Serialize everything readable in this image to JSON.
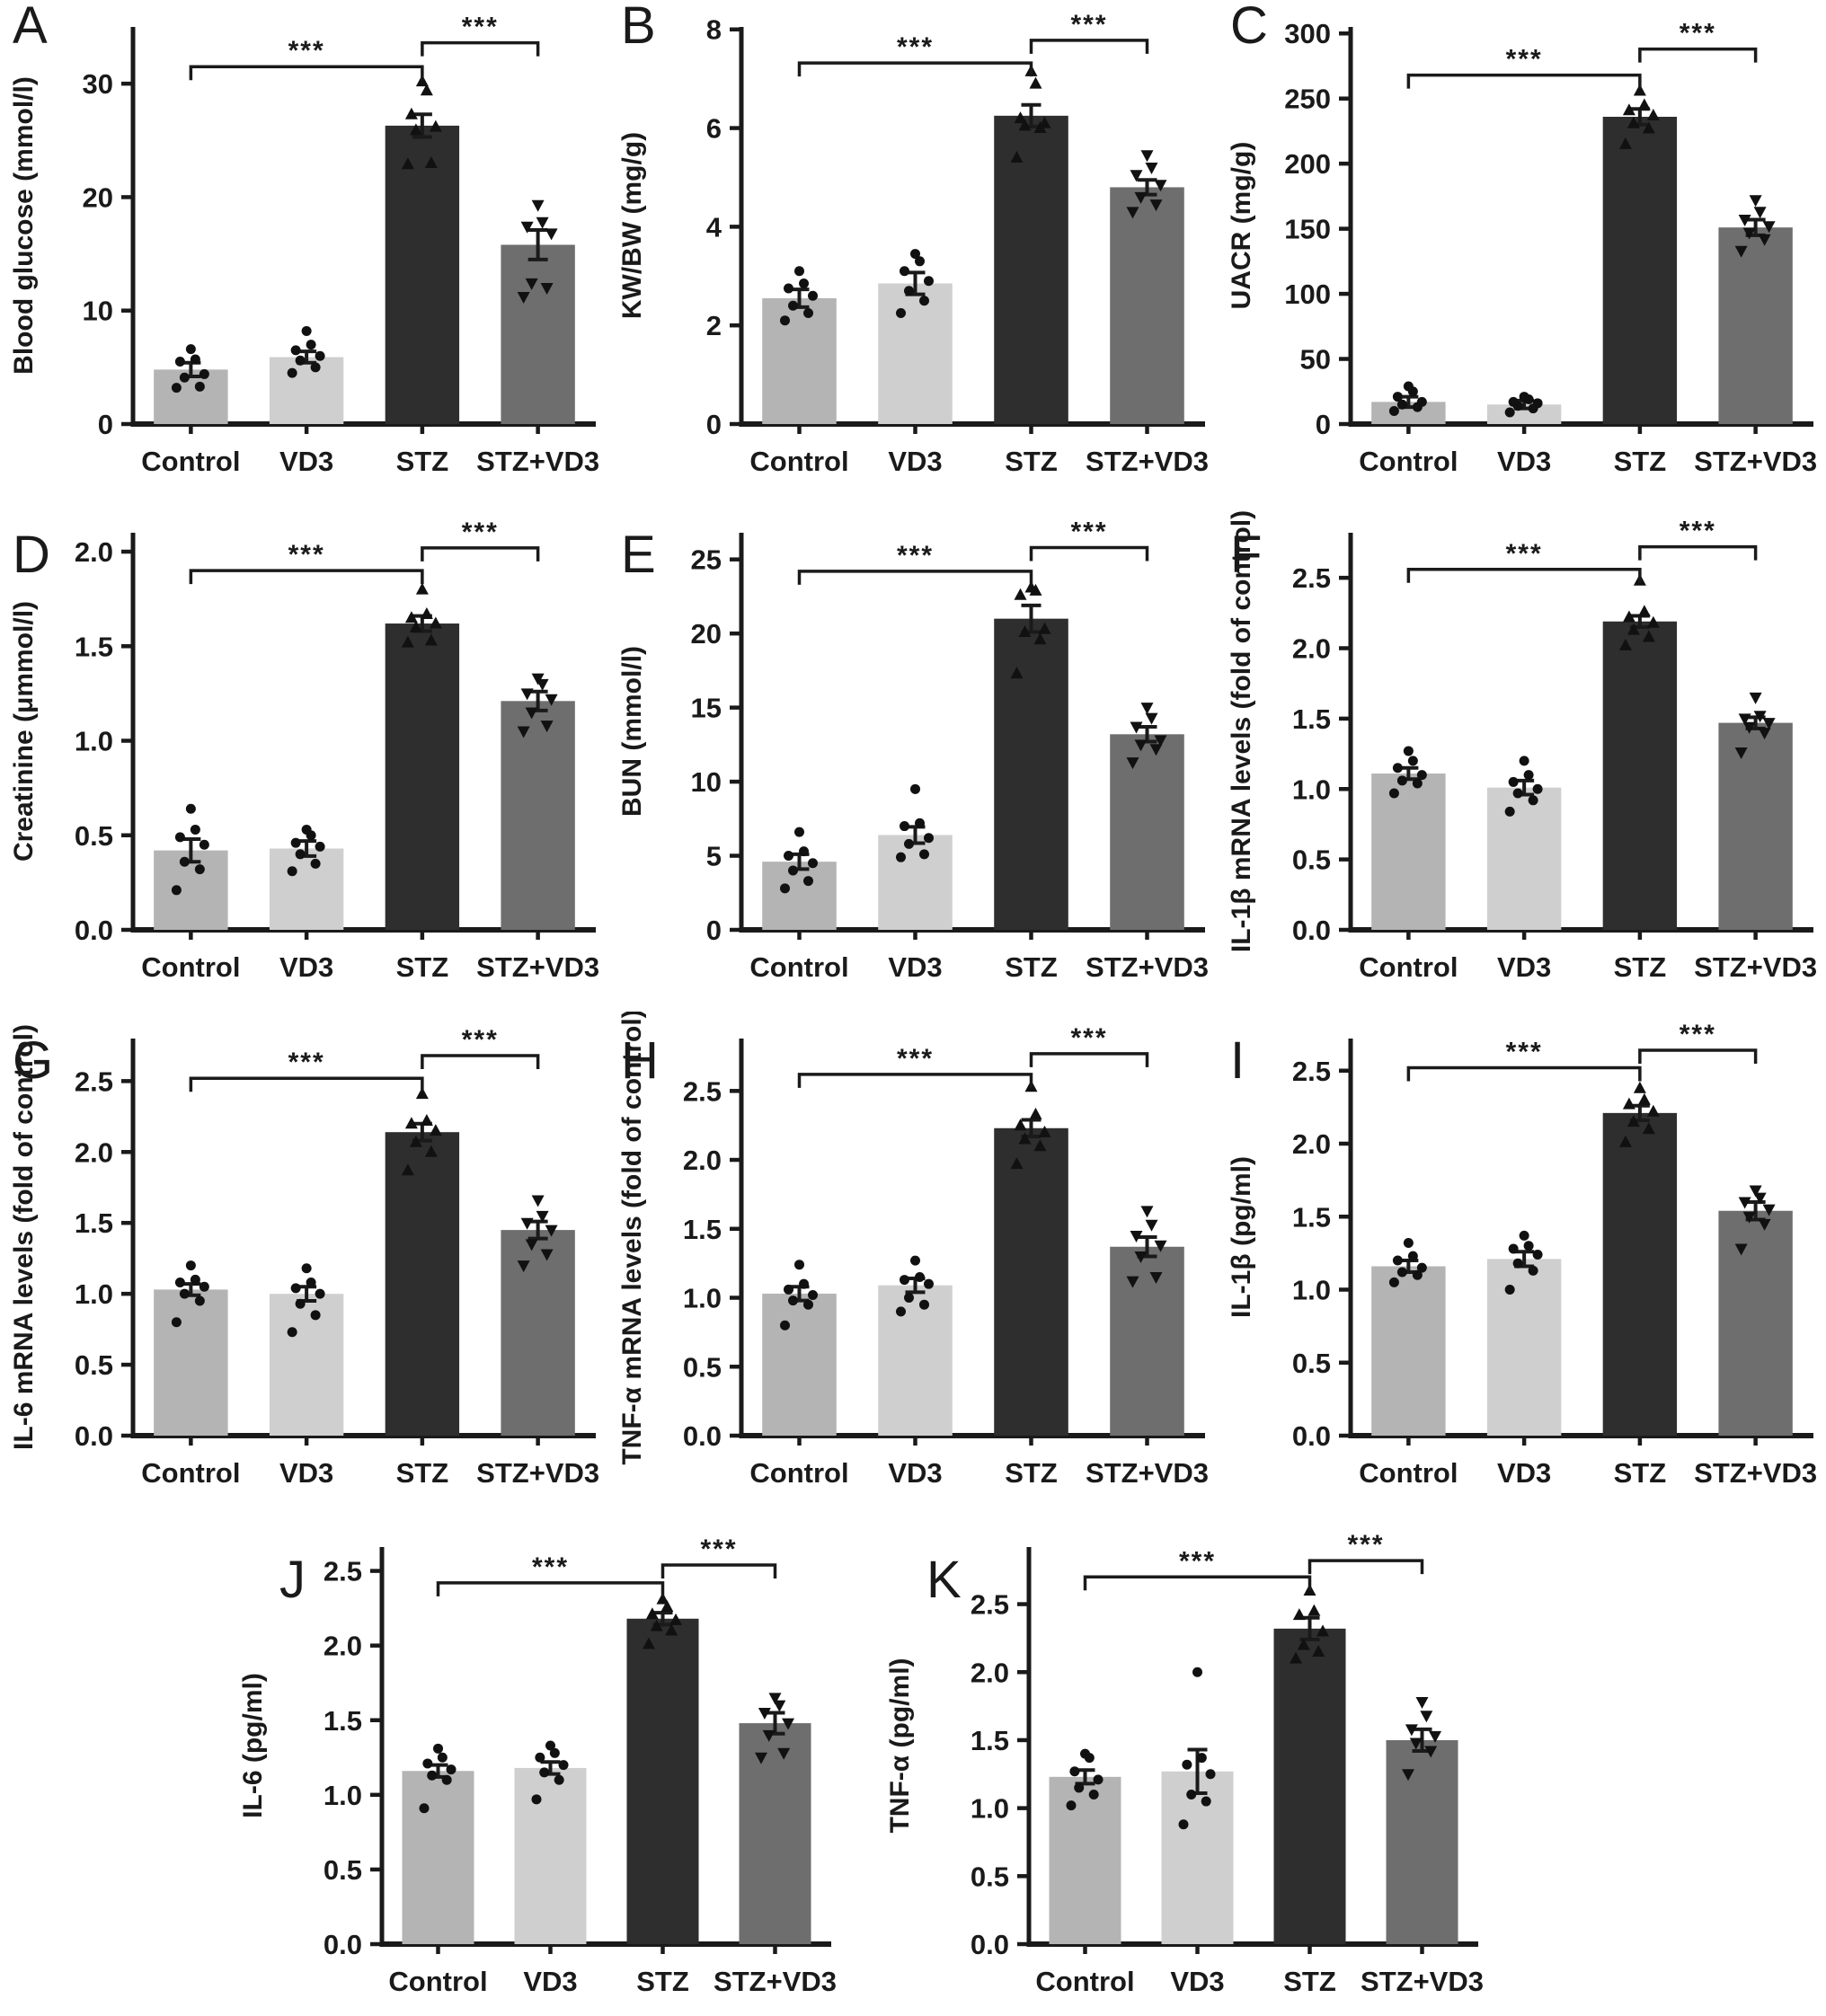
{
  "colors": {
    "bar_colors": [
      "#b4b4b4",
      "#cfcfcf",
      "#2e2e2e",
      "#6e6e6e"
    ],
    "axis": "#1a1a1a",
    "dot": "#111111",
    "significance": "#1a1a1a",
    "background": "#ffffff"
  },
  "markers": [
    "circle",
    "circle",
    "triangle-up",
    "triangle-down"
  ],
  "categories": [
    "Control",
    "VD3",
    "STZ",
    "STZ+VD3"
  ],
  "chart_data": [
    {
      "panel": "A",
      "type": "bar",
      "ylabel": "Blood glucose (mmol/l)",
      "categories": [
        "Control",
        "VD3",
        "STZ",
        "STZ+VD3"
      ],
      "values": [
        4.8,
        5.9,
        26.3,
        15.8
      ],
      "errors": [
        0.6,
        0.5,
        1.0,
        1.3
      ],
      "points": [
        [
          3.2,
          3.3,
          4.1,
          4.4,
          5.5,
          5.7,
          6.6
        ],
        [
          4.5,
          5.0,
          5.6,
          6.0,
          6.5,
          7.0,
          8.2
        ],
        [
          22.9,
          23.0,
          25.9,
          26.2,
          27.3,
          29.4,
          30.2
        ],
        [
          11.2,
          12.0,
          12.4,
          16.8,
          17.4,
          17.8,
          19.3
        ]
      ],
      "yticks": [
        0,
        10,
        20,
        30
      ],
      "ytick_labels": [
        "0",
        "10",
        "20",
        "30"
      ],
      "ylim": [
        0,
        35
      ],
      "significance": [
        {
          "from": 0,
          "to": 2,
          "label": "***",
          "y": 31.5
        },
        {
          "from": 2,
          "to": 3,
          "label": "***",
          "y": 33.6
        }
      ]
    },
    {
      "panel": "B",
      "type": "bar",
      "ylabel": "KW/BW (mg/g)",
      "categories": [
        "Control",
        "VD3",
        "STZ",
        "STZ+VD3"
      ],
      "values": [
        2.55,
        2.85,
        6.25,
        4.8
      ],
      "errors": [
        0.18,
        0.22,
        0.22,
        0.15
      ],
      "points": [
        [
          2.1,
          2.25,
          2.4,
          2.6,
          2.75,
          2.85,
          3.1
        ],
        [
          2.25,
          2.5,
          2.7,
          2.9,
          3.1,
          3.3,
          3.45
        ],
        [
          5.4,
          6.0,
          6.05,
          6.1,
          6.2,
          6.9,
          7.15
        ],
        [
          4.3,
          4.45,
          4.6,
          4.85,
          5.05,
          5.2,
          5.45
        ]
      ],
      "yticks": [
        0,
        2,
        4,
        6,
        8
      ],
      "ytick_labels": [
        "0",
        "2",
        "4",
        "6",
        "8"
      ],
      "ylim": [
        0,
        8.05
      ],
      "significance": [
        {
          "from": 0,
          "to": 2,
          "label": "***",
          "y": 7.32
        },
        {
          "from": 2,
          "to": 3,
          "label": "***",
          "y": 7.78
        }
      ]
    },
    {
      "panel": "C",
      "type": "bar",
      "ylabel": "UACR (mg/g)",
      "categories": [
        "Control",
        "VD3",
        "STZ",
        "STZ+VD3"
      ],
      "values": [
        17,
        15,
        236,
        151
      ],
      "errors": [
        4,
        3,
        6,
        6
      ],
      "points": [
        [
          10,
          13,
          15,
          17,
          21,
          25,
          29
        ],
        [
          9,
          12,
          14,
          16,
          17,
          19,
          21
        ],
        [
          215,
          227,
          231,
          237,
          241,
          245,
          256
        ],
        [
          133,
          142,
          147,
          152,
          157,
          163,
          172
        ]
      ],
      "yticks": [
        0,
        50,
        100,
        150,
        200,
        250,
        300
      ],
      "ytick_labels": [
        "0",
        "50",
        "100",
        "150",
        "200",
        "250",
        "300"
      ],
      "ylim": [
        0,
        305
      ],
      "significance": [
        {
          "from": 0,
          "to": 2,
          "label": "***",
          "y": 268
        },
        {
          "from": 2,
          "to": 3,
          "label": "***",
          "y": 288
        }
      ]
    },
    {
      "panel": "D",
      "type": "bar",
      "ylabel": "Creatinine (μmmol/l)",
      "categories": [
        "Control",
        "VD3",
        "STZ",
        "STZ+VD3"
      ],
      "values": [
        0.42,
        0.43,
        1.62,
        1.21
      ],
      "errors": [
        0.06,
        0.04,
        0.04,
        0.05
      ],
      "points": [
        [
          0.21,
          0.32,
          0.36,
          0.45,
          0.49,
          0.53,
          0.64
        ],
        [
          0.31,
          0.35,
          0.4,
          0.44,
          0.46,
          0.5,
          0.53
        ],
        [
          1.52,
          1.53,
          1.6,
          1.62,
          1.65,
          1.67,
          1.8
        ],
        [
          1.05,
          1.08,
          1.15,
          1.22,
          1.25,
          1.3,
          1.33
        ]
      ],
      "yticks": [
        0,
        0.5,
        1.0,
        1.5,
        2.0
      ],
      "ytick_labels": [
        "0.0",
        "0.5",
        "1.0",
        "1.5",
        "2.0"
      ],
      "ylim": [
        0,
        2.1
      ],
      "significance": [
        {
          "from": 0,
          "to": 2,
          "label": "***",
          "y": 1.9
        },
        {
          "from": 2,
          "to": 3,
          "label": "***",
          "y": 2.02
        }
      ]
    },
    {
      "panel": "E",
      "type": "bar",
      "ylabel": "BUN (mmol/l)",
      "categories": [
        "Control",
        "VD3",
        "STZ",
        "STZ+VD3"
      ],
      "values": [
        4.6,
        6.4,
        21.0,
        13.2
      ],
      "errors": [
        0.5,
        0.55,
        0.9,
        0.5
      ],
      "points": [
        [
          2.8,
          3.3,
          4.0,
          4.5,
          5.0,
          5.3,
          6.6
        ],
        [
          4.9,
          5.1,
          5.8,
          6.2,
          7.0,
          7.2,
          9.5
        ],
        [
          17.3,
          19.6,
          20.1,
          20.3,
          22.6,
          22.9,
          23.1
        ],
        [
          11.3,
          12.2,
          12.5,
          12.8,
          13.7,
          14.3,
          15.0
        ]
      ],
      "yticks": [
        0,
        5,
        10,
        15,
        20,
        25
      ],
      "ytick_labels": [
        "0",
        "5",
        "10",
        "15",
        "20",
        "25"
      ],
      "ylim": [
        0,
        26.8
      ],
      "significance": [
        {
          "from": 0,
          "to": 2,
          "label": "***",
          "y": 24.2
        },
        {
          "from": 2,
          "to": 3,
          "label": "***",
          "y": 25.8
        }
      ]
    },
    {
      "panel": "F",
      "type": "bar",
      "ylabel": "IL-1β mRNA levels (fold of control)",
      "categories": [
        "Control",
        "VD3",
        "STZ",
        "STZ+VD3"
      ],
      "values": [
        1.11,
        1.01,
        2.19,
        1.47
      ],
      "errors": [
        0.04,
        0.05,
        0.04,
        0.04
      ],
      "points": [
        [
          0.97,
          1.04,
          1.06,
          1.1,
          1.15,
          1.2,
          1.27
        ],
        [
          0.84,
          0.92,
          0.97,
          1.0,
          1.05,
          1.1,
          1.2
        ],
        [
          2.02,
          2.08,
          2.13,
          2.18,
          2.22,
          2.26,
          2.48
        ],
        [
          1.26,
          1.4,
          1.44,
          1.47,
          1.5,
          1.52,
          1.65
        ]
      ],
      "yticks": [
        0,
        0.5,
        1.0,
        1.5,
        2.0,
        2.5
      ],
      "ytick_labels": [
        "0.0",
        "0.5",
        "1.0",
        "1.5",
        "2.0",
        "2.5"
      ],
      "ylim": [
        0,
        2.82
      ],
      "significance": [
        {
          "from": 0,
          "to": 2,
          "label": "***",
          "y": 2.56
        },
        {
          "from": 2,
          "to": 3,
          "label": "***",
          "y": 2.72
        }
      ]
    },
    {
      "panel": "G",
      "type": "bar",
      "ylabel": "IL-6 mRNA levels (fold of control)",
      "categories": [
        "Control",
        "VD3",
        "STZ",
        "STZ+VD3"
      ],
      "values": [
        1.03,
        1.0,
        2.14,
        1.45
      ],
      "errors": [
        0.04,
        0.05,
        0.06,
        0.06
      ],
      "points": [
        [
          0.8,
          0.95,
          1.0,
          1.05,
          1.08,
          1.1,
          1.2
        ],
        [
          0.73,
          0.85,
          0.93,
          1.0,
          1.04,
          1.08,
          1.18
        ],
        [
          1.87,
          2.0,
          2.07,
          2.15,
          2.2,
          2.22,
          2.41
        ],
        [
          1.2,
          1.28,
          1.35,
          1.45,
          1.5,
          1.55,
          1.66
        ]
      ],
      "yticks": [
        0,
        0.5,
        1.0,
        1.5,
        2.0,
        2.5
      ],
      "ytick_labels": [
        "0.0",
        "0.5",
        "1.0",
        "1.5",
        "2.0",
        "2.5"
      ],
      "ylim": [
        0,
        2.8
      ],
      "significance": [
        {
          "from": 0,
          "to": 2,
          "label": "***",
          "y": 2.52
        },
        {
          "from": 2,
          "to": 3,
          "label": "***",
          "y": 2.68
        }
      ]
    },
    {
      "panel": "H",
      "type": "bar",
      "ylabel": "TNF-α mRNA levels (fold of control)",
      "categories": [
        "Control",
        "VD3",
        "STZ",
        "STZ+VD3"
      ],
      "values": [
        1.03,
        1.09,
        2.23,
        1.37
      ],
      "errors": [
        0.05,
        0.05,
        0.06,
        0.07
      ],
      "points": [
        [
          0.8,
          0.95,
          0.98,
          1.02,
          1.06,
          1.1,
          1.24
        ],
        [
          0.9,
          0.95,
          1.0,
          1.1,
          1.13,
          1.15,
          1.27
        ],
        [
          1.97,
          2.1,
          2.15,
          2.2,
          2.25,
          2.33,
          2.53
        ],
        [
          1.12,
          1.15,
          1.3,
          1.38,
          1.45,
          1.53,
          1.63
        ]
      ],
      "yticks": [
        0,
        0.5,
        1.0,
        1.5,
        2.0,
        2.5
      ],
      "ytick_labels": [
        "0.0",
        "0.5",
        "1.0",
        "1.5",
        "2.0",
        "2.5"
      ],
      "ylim": [
        0,
        2.88
      ],
      "significance": [
        {
          "from": 0,
          "to": 2,
          "label": "***",
          "y": 2.62
        },
        {
          "from": 2,
          "to": 3,
          "label": "***",
          "y": 2.77
        }
      ]
    },
    {
      "panel": "I",
      "type": "bar",
      "ylabel": "IL-1β (pg/ml)",
      "categories": [
        "Control",
        "VD3",
        "STZ",
        "STZ+VD3"
      ],
      "values": [
        1.16,
        1.21,
        2.21,
        1.54
      ],
      "errors": [
        0.04,
        0.05,
        0.05,
        0.06
      ],
      "points": [
        [
          1.05,
          1.1,
          1.12,
          1.15,
          1.2,
          1.23,
          1.32
        ],
        [
          1.0,
          1.13,
          1.18,
          1.24,
          1.28,
          1.3,
          1.37
        ],
        [
          2.01,
          2.1,
          2.15,
          2.22,
          2.27,
          2.3,
          2.38
        ],
        [
          1.28,
          1.45,
          1.5,
          1.55,
          1.6,
          1.63,
          1.68
        ]
      ],
      "yticks": [
        0,
        0.5,
        1.0,
        1.5,
        2.0,
        2.5
      ],
      "ytick_labels": [
        "0.0",
        "0.5",
        "1.0",
        "1.5",
        "2.0",
        "2.5"
      ],
      "ylim": [
        0,
        2.72
      ],
      "significance": [
        {
          "from": 0,
          "to": 2,
          "label": "***",
          "y": 2.52
        },
        {
          "from": 2,
          "to": 3,
          "label": "***",
          "y": 2.64
        }
      ]
    },
    {
      "panel": "J",
      "type": "bar",
      "ylabel": "IL-6 (pg/ml)",
      "categories": [
        "Control",
        "VD3",
        "STZ",
        "STZ+VD3"
      ],
      "values": [
        1.16,
        1.18,
        2.18,
        1.48
      ],
      "errors": [
        0.04,
        0.04,
        0.04,
        0.07
      ],
      "points": [
        [
          0.91,
          1.1,
          1.13,
          1.17,
          1.21,
          1.25,
          1.31
        ],
        [
          0.97,
          1.1,
          1.15,
          1.2,
          1.25,
          1.28,
          1.33
        ],
        [
          2.01,
          2.1,
          2.13,
          2.17,
          2.21,
          2.26,
          2.31
        ],
        [
          1.25,
          1.28,
          1.4,
          1.48,
          1.55,
          1.6,
          1.65
        ]
      ],
      "yticks": [
        0,
        0.5,
        1.0,
        1.5,
        2.0,
        2.5
      ],
      "ytick_labels": [
        "0.0",
        "0.5",
        "1.0",
        "1.5",
        "2.0",
        "2.5"
      ],
      "ylim": [
        0,
        2.66
      ],
      "significance": [
        {
          "from": 0,
          "to": 2,
          "label": "***",
          "y": 2.42
        },
        {
          "from": 2,
          "to": 3,
          "label": "***",
          "y": 2.54
        }
      ]
    },
    {
      "panel": "K",
      "type": "bar",
      "ylabel": "TNF-α (pg/ml)",
      "categories": [
        "Control",
        "VD3",
        "STZ",
        "STZ+VD3"
      ],
      "values": [
        1.23,
        1.27,
        2.32,
        1.5
      ],
      "errors": [
        0.05,
        0.16,
        0.08,
        0.08
      ],
      "points": [
        [
          1.02,
          1.1,
          1.15,
          1.21,
          1.27,
          1.37,
          1.4
        ],
        [
          0.88,
          1.05,
          1.1,
          1.25,
          1.32,
          1.37,
          2.0
        ],
        [
          2.1,
          2.15,
          2.2,
          2.3,
          2.42,
          2.45,
          2.6
        ],
        [
          1.25,
          1.42,
          1.48,
          1.53,
          1.58,
          1.68,
          1.78
        ]
      ],
      "yticks": [
        0,
        0.5,
        1.0,
        1.5,
        2.0,
        2.5
      ],
      "ytick_labels": [
        "0.0",
        "0.5",
        "1.0",
        "1.5",
        "2.0",
        "2.5"
      ],
      "ylim": [
        0,
        2.92
      ],
      "significance": [
        {
          "from": 0,
          "to": 2,
          "label": "***",
          "y": 2.7
        },
        {
          "from": 2,
          "to": 3,
          "label": "***",
          "y": 2.82
        }
      ]
    }
  ]
}
